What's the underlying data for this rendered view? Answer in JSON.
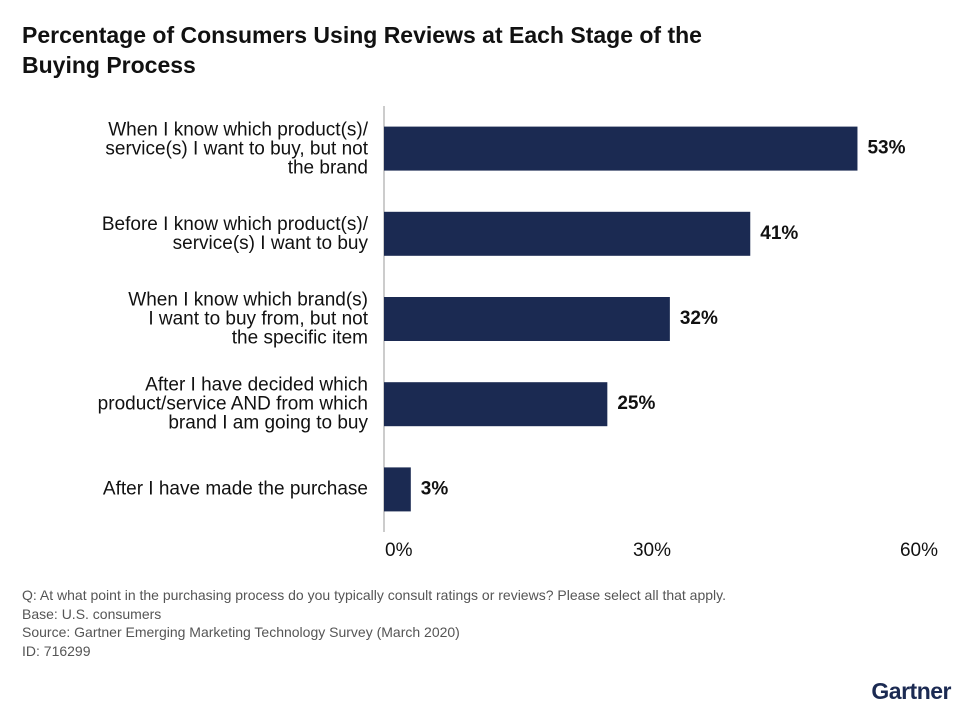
{
  "chart_data": {
    "type": "bar",
    "orientation": "horizontal",
    "title": "Percentage of Consumers Using Reviews at Each Stage of the Buying Process",
    "categories": [
      "When I know which product(s)/\nservice(s) I want to buy, but not\nthe brand",
      "Before I know which product(s)/\nservice(s) I want to buy",
      "When I know which brand(s)\nI want to buy from, but not\nthe specific item",
      "After I have decided which\nproduct/service AND from which\nbrand I am going to buy",
      "After I have made the purchase"
    ],
    "values": [
      53,
      41,
      32,
      25,
      3
    ],
    "value_labels": [
      "53%",
      "41%",
      "32%",
      "25%",
      "3%"
    ],
    "color": "#1b2a52",
    "xlim": [
      0,
      60
    ],
    "xticks": [
      {
        "value": 0,
        "label": "0%"
      },
      {
        "value": 30,
        "label": "30%"
      },
      {
        "value": 60,
        "label": "60%"
      }
    ],
    "notes": [
      "Q: At what point in the purchasing process do you typically consult ratings or reviews? Please select all that apply.",
      "Base: U.S. consumers",
      "Source: Gartner Emerging Marketing Technology Survey (March 2020)",
      "ID: 716299"
    ],
    "logo": "Gartner"
  }
}
